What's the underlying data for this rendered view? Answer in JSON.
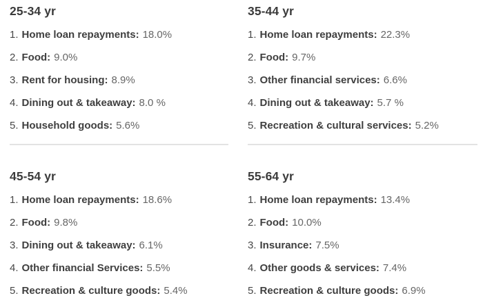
{
  "colors": {
    "heading": "#3b3b3b",
    "label": "#3f3f3f",
    "number": "#474747",
    "value": "#666666",
    "divider": "#e3e3e3",
    "bg": "#ffffff"
  },
  "sections": [
    {
      "title": "25-34 yr",
      "items": [
        {
          "num": "1.",
          "label": "Home loan repayments:",
          "value": "18.0%"
        },
        {
          "num": "2.",
          "label": "Food:",
          "value": "9.0%"
        },
        {
          "num": "3.",
          "label": "Rent for housing:",
          "value": "8.9%"
        },
        {
          "num": "4.",
          "label": "Dining out & takeaway:",
          "value": "8.0 %"
        },
        {
          "num": "5.",
          "label": "Household goods:",
          "value": "5.6%"
        }
      ]
    },
    {
      "title": "35-44 yr",
      "items": [
        {
          "num": "1.",
          "label": "Home loan repayments:",
          "value": "22.3%"
        },
        {
          "num": "2.",
          "label": "Food:",
          "value": "9.7%"
        },
        {
          "num": "3.",
          "label": "Other financial services:",
          "value": "6.6%"
        },
        {
          "num": "4.",
          "label": "Dining out & takeaway:",
          "value": "5.7 %"
        },
        {
          "num": "5.",
          "label": "Recreation & cultural services:",
          "value": "5.2%"
        }
      ]
    },
    {
      "title": "45-54 yr",
      "items": [
        {
          "num": "1.",
          "label": "Home loan repayments:",
          "value": "18.6%"
        },
        {
          "num": "2.",
          "label": "Food:",
          "value": "9.8%"
        },
        {
          "num": "3.",
          "label": "Dining out & takeaway:",
          "value": "6.1%"
        },
        {
          "num": "4.",
          "label": "Other financial Services:",
          "value": "5.5%"
        },
        {
          "num": "5.",
          "label": "Recreation & culture goods:",
          "value": "5.4%"
        }
      ]
    },
    {
      "title": "55-64 yr",
      "items": [
        {
          "num": "1.",
          "label": "Home loan repayments:",
          "value": "13.4%"
        },
        {
          "num": "2.",
          "label": "Food:",
          "value": "10.0%"
        },
        {
          "num": "3.",
          "label": "Insurance:",
          "value": "7.5%"
        },
        {
          "num": "4.",
          "label": "Other goods & services:",
          "value": "7.4%"
        },
        {
          "num": "5.",
          "label": "Recreation & culture goods:",
          "value": "6.9%"
        }
      ]
    }
  ]
}
